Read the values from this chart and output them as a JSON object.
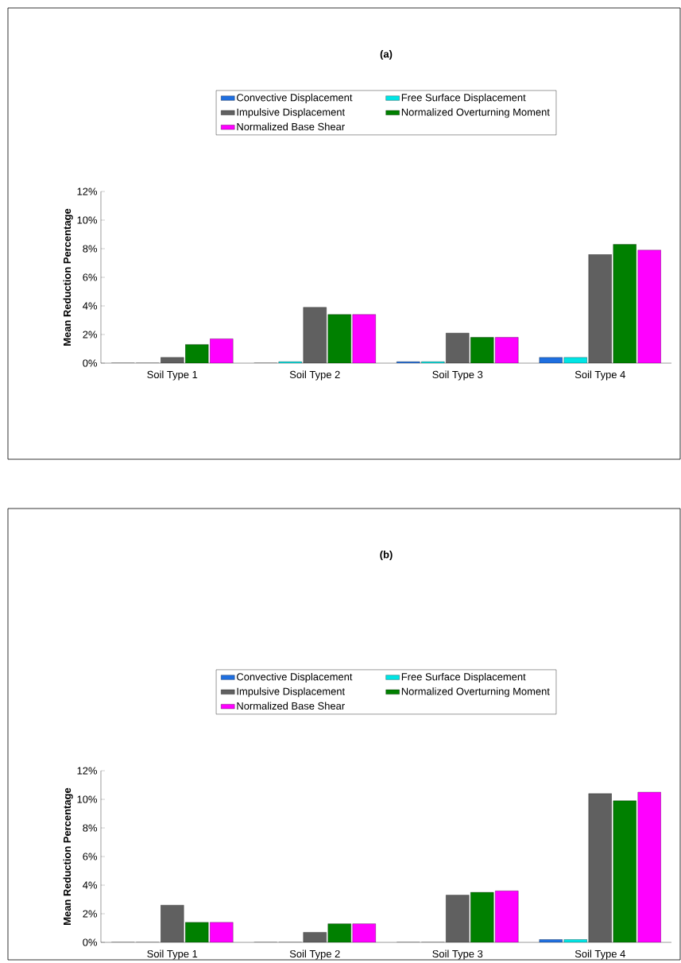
{
  "chart_data": [
    {
      "type": "bar",
      "title": "(a)",
      "ylabel": "Mean Reduction Percentage",
      "categories": [
        "Soil Type 1",
        "Soil Type 2",
        "Soil Type 3",
        "Soil Type 4"
      ],
      "legend": "top",
      "grid": false,
      "ylim": [
        0,
        12
      ],
      "yticks": [
        {
          "value": 0,
          "label": "0%"
        },
        {
          "value": 2,
          "label": "2%"
        },
        {
          "value": 4,
          "label": "4%"
        },
        {
          "value": 6,
          "label": "6%"
        },
        {
          "value": 8,
          "label": "8%"
        },
        {
          "value": 10,
          "label": "10%"
        },
        {
          "value": 12,
          "label": "12%"
        }
      ],
      "series": [
        {
          "name": "Convective Displacement",
          "color": "#1f6fe0",
          "values": [
            0,
            0,
            0.1,
            0.4
          ]
        },
        {
          "name": "Free Surface Displacement",
          "color": "#00e5e5",
          "values": [
            0,
            0.1,
            0.1,
            0.4
          ]
        },
        {
          "name": "Impulsive Displacement",
          "color": "#606060",
          "values": [
            0.4,
            3.9,
            2.1,
            7.6
          ]
        },
        {
          "name": "Normalized Overturning Moment",
          "color": "#008000",
          "values": [
            1.3,
            3.4,
            1.8,
            8.3
          ]
        },
        {
          "name": "Normalized Base Shear",
          "color": "#ff00ff",
          "values": [
            1.7,
            3.4,
            1.8,
            7.9
          ]
        }
      ]
    },
    {
      "type": "bar",
      "title": "(b)",
      "ylabel": "Mean Reduction Percentage",
      "categories": [
        "Soil Type 1",
        "Soil Type 2",
        "Soil Type 3",
        "Soil Type 4"
      ],
      "legend": "top",
      "grid": false,
      "ylim": [
        0,
        12
      ],
      "yticks": [
        {
          "value": 0,
          "label": "0%"
        },
        {
          "value": 2,
          "label": "2%"
        },
        {
          "value": 4,
          "label": "4%"
        },
        {
          "value": 6,
          "label": "6%"
        },
        {
          "value": 8,
          "label": "8%"
        },
        {
          "value": 10,
          "label": "10%"
        },
        {
          "value": 12,
          "label": "12%"
        }
      ],
      "series": [
        {
          "name": "Convective Displacement",
          "color": "#1f6fe0",
          "values": [
            0,
            0,
            0,
            0.2
          ]
        },
        {
          "name": "Free Surface Displacement",
          "color": "#00e5e5",
          "values": [
            0,
            0,
            0,
            0.2
          ]
        },
        {
          "name": "Impulsive Displacement",
          "color": "#606060",
          "values": [
            2.6,
            0.7,
            3.3,
            10.4
          ]
        },
        {
          "name": "Normalized Overturning Moment",
          "color": "#008000",
          "values": [
            1.4,
            1.3,
            3.5,
            9.9
          ]
        },
        {
          "name": "Normalized Base Shear",
          "color": "#ff00ff",
          "values": [
            1.4,
            1.3,
            3.6,
            10.5
          ]
        }
      ]
    }
  ]
}
